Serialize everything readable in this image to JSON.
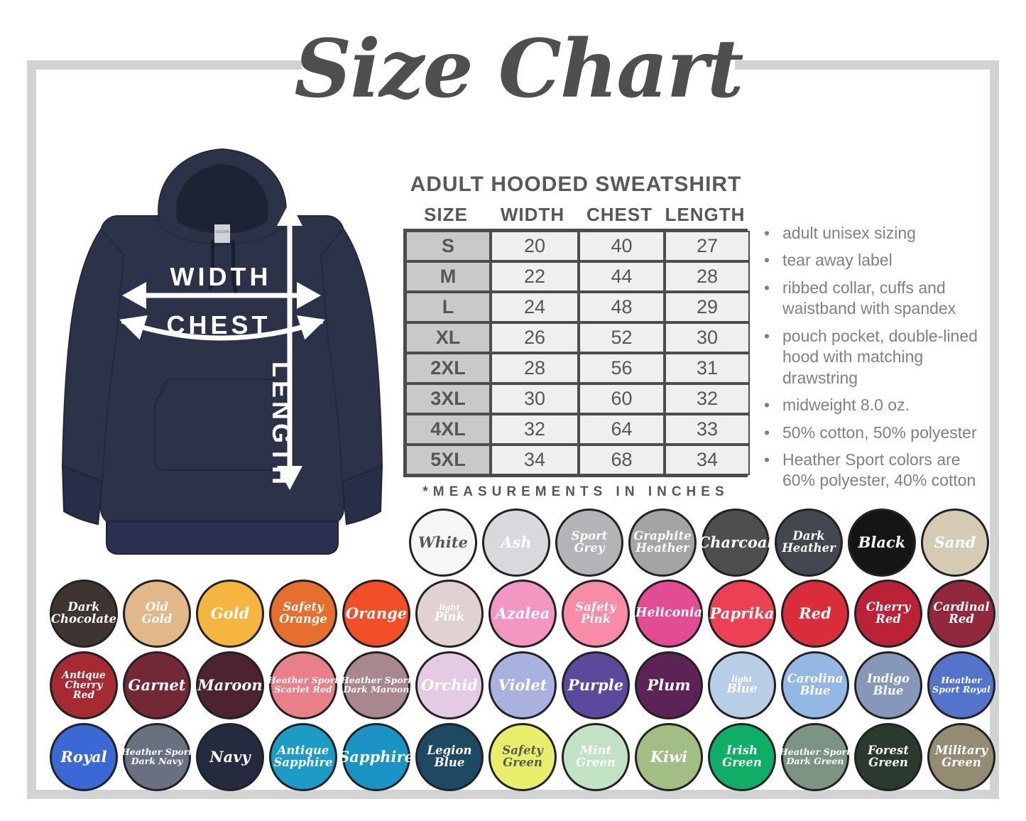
{
  "page": {
    "title": "Size Chart"
  },
  "product": {
    "heading": "ADULT HOODED SWEATSHIRT",
    "measurement_note": "*MEASUREMENTS IN INCHES"
  },
  "diagram": {
    "width_label": "WIDTH",
    "chest_label": "CHEST",
    "length_label": "LENGTH",
    "brand_tag": "GILDAN",
    "garment_color": "#2c3349"
  },
  "size_table": {
    "columns": [
      "SIZE",
      "WIDTH",
      "CHEST",
      "LENGTH"
    ],
    "rows": [
      [
        "S",
        "20",
        "40",
        "27"
      ],
      [
        "M",
        "22",
        "44",
        "28"
      ],
      [
        "L",
        "24",
        "48",
        "29"
      ],
      [
        "XL",
        "26",
        "52",
        "30"
      ],
      [
        "2XL",
        "28",
        "56",
        "31"
      ],
      [
        "3XL",
        "30",
        "60",
        "32"
      ],
      [
        "4XL",
        "32",
        "64",
        "33"
      ],
      [
        "5XL",
        "34",
        "68",
        "34"
      ]
    ]
  },
  "features": [
    "adult unisex sizing",
    "tear away label",
    "ribbed collar, cuffs and waistband with spandex",
    "pouch pocket, double-lined hood with matching drawstring",
    "midweight 8.0 oz.",
    "50% cotton, 50% polyester",
    "Heather Sport colors are 60% polyester, 40% cotton"
  ],
  "color_rows": [
    [
      {
        "name": "White",
        "lines": [
          "White"
        ],
        "fill": "#f6f6f6",
        "text": "#58595b"
      },
      {
        "name": "Ash",
        "lines": [
          "Ash"
        ],
        "fill": "#d7d9dc",
        "text": "#ffffff"
      },
      {
        "name": "Sport Grey",
        "lines": [
          "Sport",
          "Grey"
        ],
        "fill": "#b2b4b7",
        "text": "#ffffff"
      },
      {
        "name": "Graphite Heather",
        "lines": [
          "Graphite",
          "Heather"
        ],
        "fill": "#a2a5a4",
        "text": "#ffffff"
      },
      {
        "name": "Charcoal",
        "lines": [
          "Charcoal"
        ],
        "fill": "#4c4e50",
        "text": "#ffffff"
      },
      {
        "name": "Dark Heather",
        "lines": [
          "Dark",
          "Heather"
        ],
        "fill": "#43474f",
        "text": "#ffffff"
      },
      {
        "name": "Black",
        "lines": [
          "Black"
        ],
        "fill": "#151515",
        "text": "#ffffff"
      },
      {
        "name": "Sand",
        "lines": [
          "Sand"
        ],
        "fill": "#d5cab2",
        "text": "#ffffff"
      }
    ],
    [
      {
        "name": "Dark Chocolate",
        "lines": [
          "Dark",
          "Chocolate"
        ],
        "fill": "#3e3532",
        "text": "#ffffff"
      },
      {
        "name": "Old Gold",
        "lines": [
          "Old",
          "Gold"
        ],
        "fill": "#e2b888",
        "text": "#ffffff"
      },
      {
        "name": "Gold",
        "lines": [
          "Gold"
        ],
        "fill": "#f5b53f",
        "text": "#ffffff"
      },
      {
        "name": "Safety Orange",
        "lines": [
          "Safety",
          "Orange"
        ],
        "fill": "#e76f2e",
        "text": "#ffffff"
      },
      {
        "name": "Orange",
        "lines": [
          "Orange"
        ],
        "fill": "#f34e27",
        "text": "#ffffff"
      },
      {
        "name": "Light Pink",
        "lines": [
          "light",
          "Pink"
        ],
        "fill": "#e2d1d3",
        "text": "#ffffff",
        "small_first": true
      },
      {
        "name": "Azalea",
        "lines": [
          "Azalea"
        ],
        "fill": "#f297c1",
        "text": "#ffffff"
      },
      {
        "name": "Safety Pink",
        "lines": [
          "Safety",
          "Pink"
        ],
        "fill": "#f88ba7",
        "text": "#ffffff"
      },
      {
        "name": "Heliconia",
        "lines": [
          "Heliconia"
        ],
        "fill": "#e34b93",
        "text": "#ffffff"
      },
      {
        "name": "Paprika",
        "lines": [
          "Paprika"
        ],
        "fill": "#ee4055",
        "text": "#ffffff"
      },
      {
        "name": "Red",
        "lines": [
          "Red"
        ],
        "fill": "#d92e3a",
        "text": "#ffffff"
      },
      {
        "name": "Cherry Red",
        "lines": [
          "Cherry",
          "Red"
        ],
        "fill": "#bb2237",
        "text": "#ffffff"
      },
      {
        "name": "Cardinal Red",
        "lines": [
          "Cardinal",
          "Red"
        ],
        "fill": "#92283b",
        "text": "#ffffff"
      }
    ],
    [
      {
        "name": "Antique Cherry Red",
        "lines": [
          "Antique",
          "Cherry",
          "Red"
        ],
        "fill": "#a52a32",
        "text": "#ffffff"
      },
      {
        "name": "Garnet",
        "lines": [
          "Garnet"
        ],
        "fill": "#732837",
        "text": "#ffffff"
      },
      {
        "name": "Maroon",
        "lines": [
          "Maroon"
        ],
        "fill": "#4d2332",
        "text": "#ffffff"
      },
      {
        "name": "Heather Sport Scarlet Red",
        "lines": [
          "Heather Sport",
          "Scarlet Red"
        ],
        "fill": "#e87f89",
        "text": "#ffffff"
      },
      {
        "name": "Heather Sport Dark Maroon",
        "lines": [
          "Heather Sport",
          "Dark Maroon"
        ],
        "fill": "#a8878f",
        "text": "#ffffff"
      },
      {
        "name": "Orchid",
        "lines": [
          "Orchid"
        ],
        "fill": "#e4cbe4",
        "text": "#ffffff"
      },
      {
        "name": "Violet",
        "lines": [
          "Violet"
        ],
        "fill": "#a9b2df",
        "text": "#ffffff"
      },
      {
        "name": "Purple",
        "lines": [
          "Purple"
        ],
        "fill": "#5b499d",
        "text": "#ffffff"
      },
      {
        "name": "Plum",
        "lines": [
          "Plum"
        ],
        "fill": "#5d2355",
        "text": "#ffffff"
      },
      {
        "name": "Light Blue",
        "lines": [
          "light",
          "Blue"
        ],
        "fill": "#b8cee7",
        "text": "#ffffff",
        "small_first": true
      },
      {
        "name": "Carolina Blue",
        "lines": [
          "Carolina",
          "Blue"
        ],
        "fill": "#93b8e3",
        "text": "#ffffff"
      },
      {
        "name": "Indigo Blue",
        "lines": [
          "Indigo",
          "Blue"
        ],
        "fill": "#8698b8",
        "text": "#ffffff"
      },
      {
        "name": "Heather Sport Royal",
        "lines": [
          "Heather",
          "Sport Royal"
        ],
        "fill": "#5474cc",
        "text": "#ffffff"
      }
    ],
    [
      {
        "name": "Royal",
        "lines": [
          "Royal"
        ],
        "fill": "#3a69d5",
        "text": "#ffffff"
      },
      {
        "name": "Heather Sport Dark Navy",
        "lines": [
          "Heather Sport",
          "Dark Navy"
        ],
        "fill": "#697080",
        "text": "#ffffff"
      },
      {
        "name": "Navy",
        "lines": [
          "Navy"
        ],
        "fill": "#242b3e",
        "text": "#ffffff"
      },
      {
        "name": "Antique Sapphire",
        "lines": [
          "Antique",
          "Sapphire"
        ],
        "fill": "#1d9bc7",
        "text": "#ffffff"
      },
      {
        "name": "Sapphire",
        "lines": [
          "Sapphire"
        ],
        "fill": "#1a94c4",
        "text": "#ffffff"
      },
      {
        "name": "Legion Blue",
        "lines": [
          "Legion",
          "Blue"
        ],
        "fill": "#1e4962",
        "text": "#ffffff"
      },
      {
        "name": "Safety Green",
        "lines": [
          "Safety",
          "Green"
        ],
        "fill": "#e8ee69",
        "text": "#58595b"
      },
      {
        "name": "Mint Green",
        "lines": [
          "Mint",
          "Green"
        ],
        "fill": "#c1e2c3",
        "text": "#ffffff"
      },
      {
        "name": "Kiwi",
        "lines": [
          "Kiwi"
        ],
        "fill": "#a3be85",
        "text": "#ffffff"
      },
      {
        "name": "Irish Green",
        "lines": [
          "Irish",
          "Green"
        ],
        "fill": "#0eae67",
        "text": "#ffffff"
      },
      {
        "name": "Heather Sport Dark Green",
        "lines": [
          "Heather Sport",
          "Dark Green"
        ],
        "fill": "#7c9484",
        "text": "#ffffff"
      },
      {
        "name": "Forest Green",
        "lines": [
          "Forest",
          "Green"
        ],
        "fill": "#2a3b2d",
        "text": "#ffffff"
      },
      {
        "name": "Military Green",
        "lines": [
          "Military",
          "Green"
        ],
        "fill": "#948c72",
        "text": "#ffffff"
      }
    ]
  ]
}
